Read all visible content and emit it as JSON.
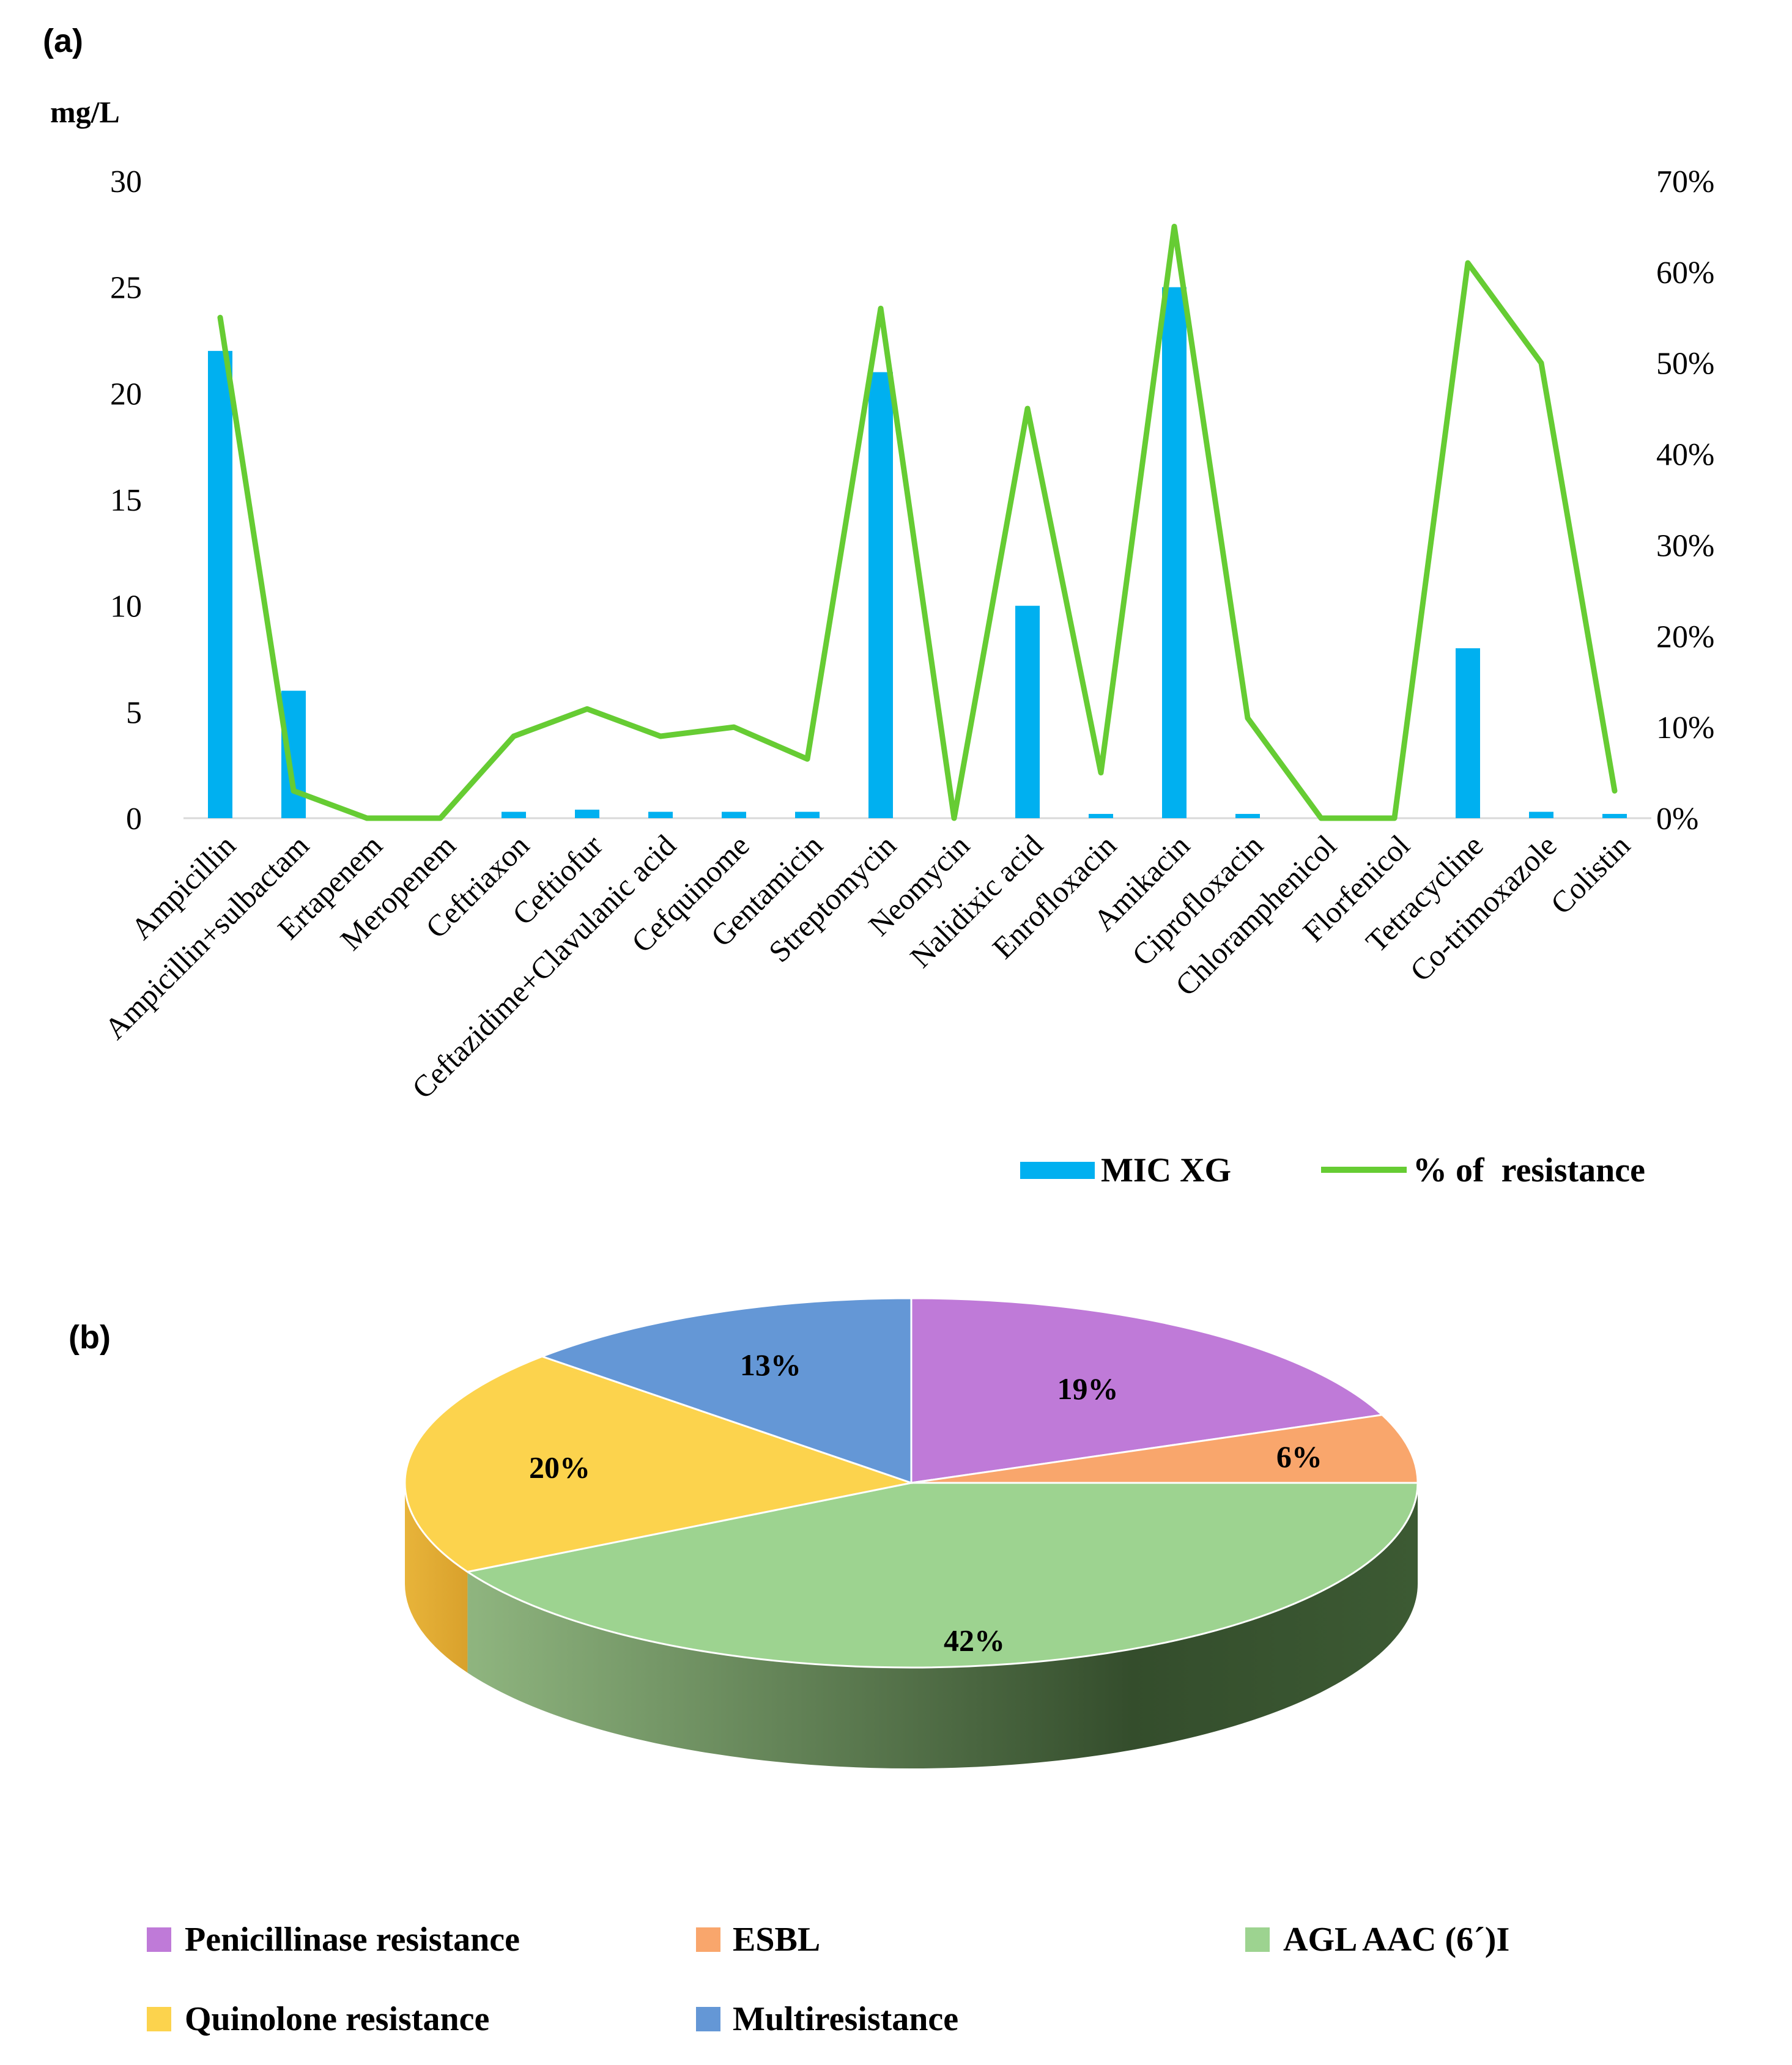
{
  "chart_data": [
    {
      "type": "bar+line",
      "panel_label": "(a)",
      "ylabel_left": "mg/L",
      "ylim_left": [
        0,
        30
      ],
      "yticks_left": [
        "0",
        "5",
        "10",
        "15",
        "20",
        "25",
        "30"
      ],
      "ylim_right": [
        0,
        70
      ],
      "yticks_right": [
        "0%",
        "10%",
        "20%",
        "30%",
        "40%",
        "50%",
        "60%",
        "70%"
      ],
      "categories": [
        "Ampicillin",
        "Ampicillin+sulbactam",
        "Ertapenem",
        "Meropenem",
        "Ceftriaxon",
        "Ceftiofur",
        "Ceftazidime+Clavulanic acid",
        "Cefquinome",
        "Gentamicin",
        "Streptomycin",
        "Neomycin",
        "Nalidixic acid",
        "Enrofloxacin",
        "Amikacin",
        "Ciprofloxacin",
        "Chloramphenicol",
        "Florfenicol",
        "Tetracycline",
        "Co-trimoxazole",
        "Colistin"
      ],
      "series": [
        {
          "name": "MIC XG",
          "kind": "bar",
          "axis": "left",
          "color": "#00b0f0",
          "values": [
            22,
            6,
            0,
            0,
            0.3,
            0.4,
            0.3,
            0.3,
            0.3,
            21,
            0,
            10,
            0.2,
            25,
            0.2,
            0,
            0,
            8,
            0.3,
            0.2
          ]
        },
        {
          "name": "% of  resistance",
          "kind": "line",
          "axis": "right",
          "color": "#66cc33",
          "values": [
            55,
            3,
            0,
            0,
            9,
            12,
            9,
            10,
            6.5,
            56,
            0,
            45,
            5,
            65,
            11,
            0,
            0,
            61,
            50,
            3
          ]
        }
      ]
    },
    {
      "type": "pie",
      "panel_label": "(b)",
      "slices": [
        {
          "name": "Penicillinase resistance",
          "value": 19,
          "label": "19%",
          "color": "#bf7ad8"
        },
        {
          "name": "ESBL",
          "value": 6,
          "label": "6%",
          "color": "#f9a66c"
        },
        {
          "name": "AGL AAC (6´)I",
          "value": 42,
          "label": "42%",
          "color": "#9dd390"
        },
        {
          "name": "Quinolone resistance",
          "value": 20,
          "label": "20%",
          "color": "#fcd34d"
        },
        {
          "name": "Multiresistance",
          "value": 13,
          "label": "13%",
          "color": "#6497d6"
        }
      ]
    }
  ]
}
